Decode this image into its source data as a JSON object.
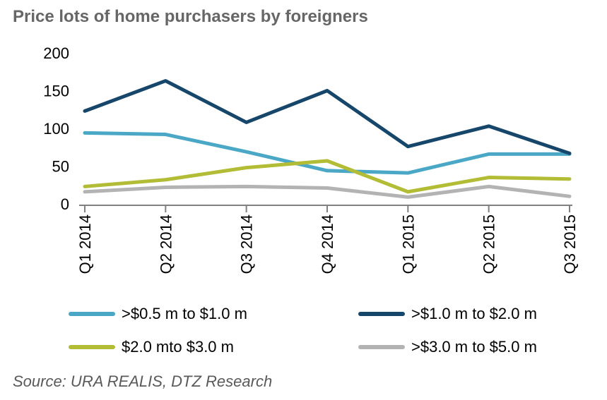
{
  "title": "Price lots of home purchasers by foreigners",
  "source": "Source: URA REALIS, DTZ Research",
  "colors": {
    "title_text": "#666666",
    "source_text": "#595959",
    "axis_line": "#808080",
    "tick_label": "#000000"
  },
  "chart_data": {
    "type": "line",
    "title": "Price lots of home purchasers by foreigners",
    "xlabel": "",
    "ylabel": "",
    "categories": [
      "Q1 2014",
      "Q2 2014",
      "Q3 2014",
      "Q4 2014",
      "Q1 2015",
      "Q2 2015",
      "Q3 2015"
    ],
    "series": [
      {
        "name": ">$0.5 m to $1.0 m",
        "color": "#4aa7c6",
        "values": [
          94,
          92,
          69,
          44,
          41,
          66,
          66
        ]
      },
      {
        "name": ">$1.0 m to $2.0 m",
        "color": "#17466b",
        "values": [
          123,
          163,
          108,
          150,
          76,
          103,
          67
        ]
      },
      {
        "name": "$2.0 mto $3.0 m",
        "color": "#b2bc35",
        "values": [
          23,
          32,
          48,
          57,
          16,
          35,
          33
        ]
      },
      {
        "name": ">$3.0 m to $5.0 m",
        "color": "#b3b3b3",
        "values": [
          16,
          22,
          23,
          21,
          9,
          23,
          10
        ]
      }
    ],
    "ylim": [
      0,
      200
    ],
    "yticks": [
      0,
      50,
      100,
      150,
      200
    ],
    "grid": false,
    "legend_position": "bottom",
    "x_label_rotation": -90,
    "line_width": 5
  }
}
